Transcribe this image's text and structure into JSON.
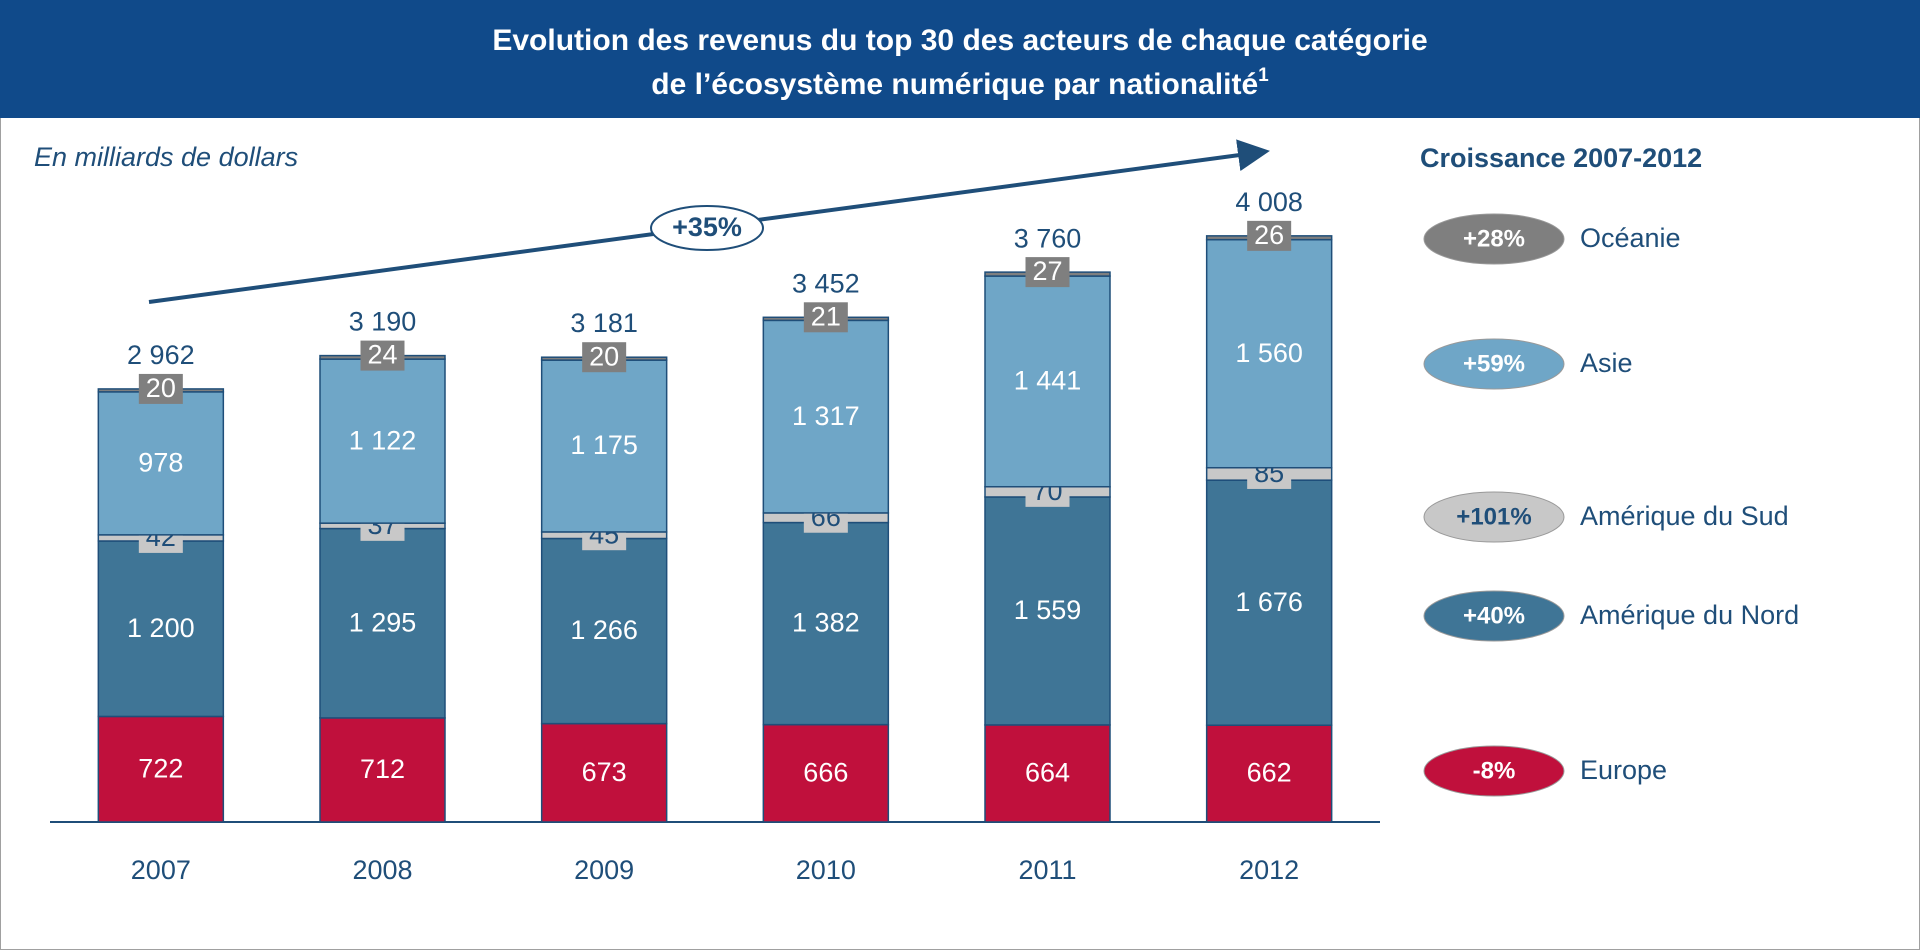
{
  "chart_data": {
    "type": "stacked_bar",
    "title": "Evolution des revenus du top 30 des acteurs de chaque catégorie",
    "title_line2": "de l’écosystème numérique par nationalité",
    "title_sup": "1",
    "subtitle": "En milliards de dollars",
    "annotation": "+35%",
    "legend_title": "Croissance 2007-2012",
    "categories": [
      "2007",
      "2008",
      "2009",
      "2010",
      "2011",
      "2012"
    ],
    "totals": [
      2962,
      3190,
      3181,
      3452,
      3760,
      4008
    ],
    "total_labels": [
      "2 962",
      "3 190",
      "3 181",
      "3 452",
      "3 760",
      "4 008"
    ],
    "series": [
      {
        "name": "Europe",
        "color": "#c0103c",
        "growth": "-8%",
        "values": [
          722,
          712,
          673,
          666,
          664,
          662
        ]
      },
      {
        "name": "Amérique du Nord",
        "color": "#3f7596",
        "growth": "+40%",
        "values": [
          1200,
          1295,
          1266,
          1382,
          1559,
          1676
        ],
        "value_labels": [
          "1 200",
          "1 295",
          "1 266",
          "1 382",
          "1 559",
          "1 676"
        ]
      },
      {
        "name": "Amérique du Sud",
        "color": "#c8c8c8",
        "growth": "+101%",
        "values": [
          42,
          37,
          45,
          66,
          70,
          85
        ]
      },
      {
        "name": "Asie",
        "color": "#6fa6c7",
        "growth": "+59%",
        "values": [
          978,
          1122,
          1175,
          1317,
          1441,
          1560
        ],
        "value_labels": [
          "978",
          "1 122",
          "1 175",
          "1 317",
          "1 441",
          "1 560"
        ]
      },
      {
        "name": "Océanie",
        "color": "#7f7f7f",
        "growth": "+28%",
        "values": [
          20,
          24,
          20,
          21,
          27,
          26
        ]
      }
    ]
  }
}
